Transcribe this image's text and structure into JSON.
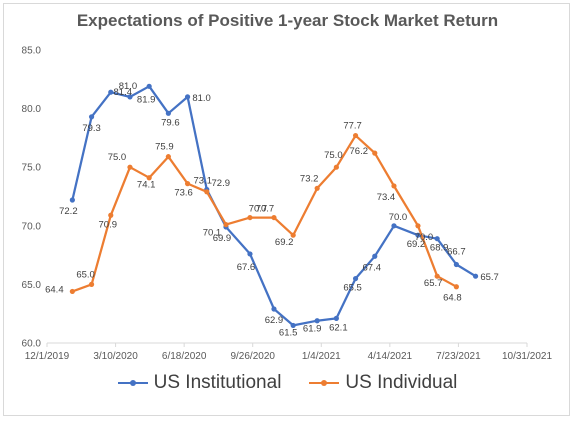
{
  "chart_data": {
    "type": "line",
    "title": "Expectations of Positive 1-year Stock Market Return",
    "xlabel": "",
    "ylabel": "",
    "x_tick_labels": [
      "12/1/2019",
      "3/10/2020",
      "6/18/2020",
      "9/26/2020",
      "1/4/2021",
      "4/14/2021",
      "7/23/2021",
      "10/31/2021"
    ],
    "x_tick_dates": [
      "2019-12-01",
      "2020-03-10",
      "2020-06-18",
      "2020-09-26",
      "2021-01-04",
      "2021-04-14",
      "2021-07-23",
      "2021-10-31"
    ],
    "y_tick_labels": [
      "60.0",
      "65.0",
      "70.0",
      "75.0",
      "80.0",
      "85.0"
    ],
    "ylim": [
      60,
      85
    ],
    "grid": false,
    "legend_position": "bottom",
    "series": [
      {
        "name": "US Institutional",
        "color": "#4472c4",
        "points": [
          {
            "x": "2020-01-07",
            "y": 72.2,
            "label": "72.2"
          },
          {
            "x": "2020-02-04",
            "y": 79.3,
            "label": "79.3"
          },
          {
            "x": "2020-03-03",
            "y": 81.4,
            "label": "81.4"
          },
          {
            "x": "2020-03-31",
            "y": 81.0,
            "label": "81.0"
          },
          {
            "x": "2020-04-28",
            "y": 81.9,
            "label": "81.9"
          },
          {
            "x": "2020-05-26",
            "y": 79.6,
            "label": "79.6"
          },
          {
            "x": "2020-06-23",
            "y": 81.0,
            "label": "81.0"
          },
          {
            "x": "2020-07-21",
            "y": 73.1,
            "label": "73.1"
          },
          {
            "x": "2020-08-18",
            "y": 69.9,
            "label": "69.9"
          },
          {
            "x": "2020-09-22",
            "y": 67.6,
            "label": "67.6"
          },
          {
            "x": "2020-10-27",
            "y": 62.9,
            "label": "62.9"
          },
          {
            "x": "2020-11-24",
            "y": 61.5,
            "label": "61.5"
          },
          {
            "x": "2020-12-29",
            "y": 61.9,
            "label": "61.9"
          },
          {
            "x": "2021-01-26",
            "y": 62.1,
            "label": "62.1"
          },
          {
            "x": "2021-02-23",
            "y": 65.5,
            "label": "65.5"
          },
          {
            "x": "2021-03-23",
            "y": 67.4,
            "label": "67.4"
          },
          {
            "x": "2021-04-20",
            "y": 70.0,
            "label": "70.0"
          },
          {
            "x": "2021-05-25",
            "y": 69.2,
            "label": "69.2"
          },
          {
            "x": "2021-06-22",
            "y": 68.9,
            "label": "68.9"
          },
          {
            "x": "2021-07-20",
            "y": 66.7,
            "label": "66.7"
          },
          {
            "x": "2021-08-17",
            "y": 65.7,
            "label": "65.7"
          }
        ]
      },
      {
        "name": "US Individual",
        "color": "#ed7d31",
        "points": [
          {
            "x": "2020-01-07",
            "y": 64.4,
            "label": "64.4"
          },
          {
            "x": "2020-02-04",
            "y": 65.0,
            "label": "65.0"
          },
          {
            "x": "2020-03-03",
            "y": 70.9,
            "label": "70.9"
          },
          {
            "x": "2020-03-31",
            "y": 75.0,
            "label": "75.0"
          },
          {
            "x": "2020-04-28",
            "y": 74.1,
            "label": "74.1"
          },
          {
            "x": "2020-05-26",
            "y": 75.9,
            "label": "75.9"
          },
          {
            "x": "2020-06-23",
            "y": 73.6,
            "label": "73.6"
          },
          {
            "x": "2020-07-21",
            "y": 72.9,
            "label": "72.9"
          },
          {
            "x": "2020-08-18",
            "y": 70.1,
            "label": "70.1"
          },
          {
            "x": "2020-09-22",
            "y": 70.7,
            "label": "70.7"
          },
          {
            "x": "2020-10-27",
            "y": 70.7,
            "label": "70.7"
          },
          {
            "x": "2020-11-24",
            "y": 69.2,
            "label": "69.2"
          },
          {
            "x": "2020-12-29",
            "y": 73.2,
            "label": "73.2"
          },
          {
            "x": "2021-01-26",
            "y": 75.0,
            "label": "75.0"
          },
          {
            "x": "2021-02-23",
            "y": 77.7,
            "label": "77.7"
          },
          {
            "x": "2021-03-23",
            "y": 76.2,
            "label": "76.2"
          },
          {
            "x": "2021-04-20",
            "y": 73.4,
            "label": "73.4"
          },
          {
            "x": "2021-05-25",
            "y": 70.0,
            "label": "70.0"
          },
          {
            "x": "2021-06-22",
            "y": 65.7,
            "label": "65.7"
          },
          {
            "x": "2021-07-20",
            "y": 64.8,
            "label": "64.8"
          }
        ]
      }
    ]
  }
}
